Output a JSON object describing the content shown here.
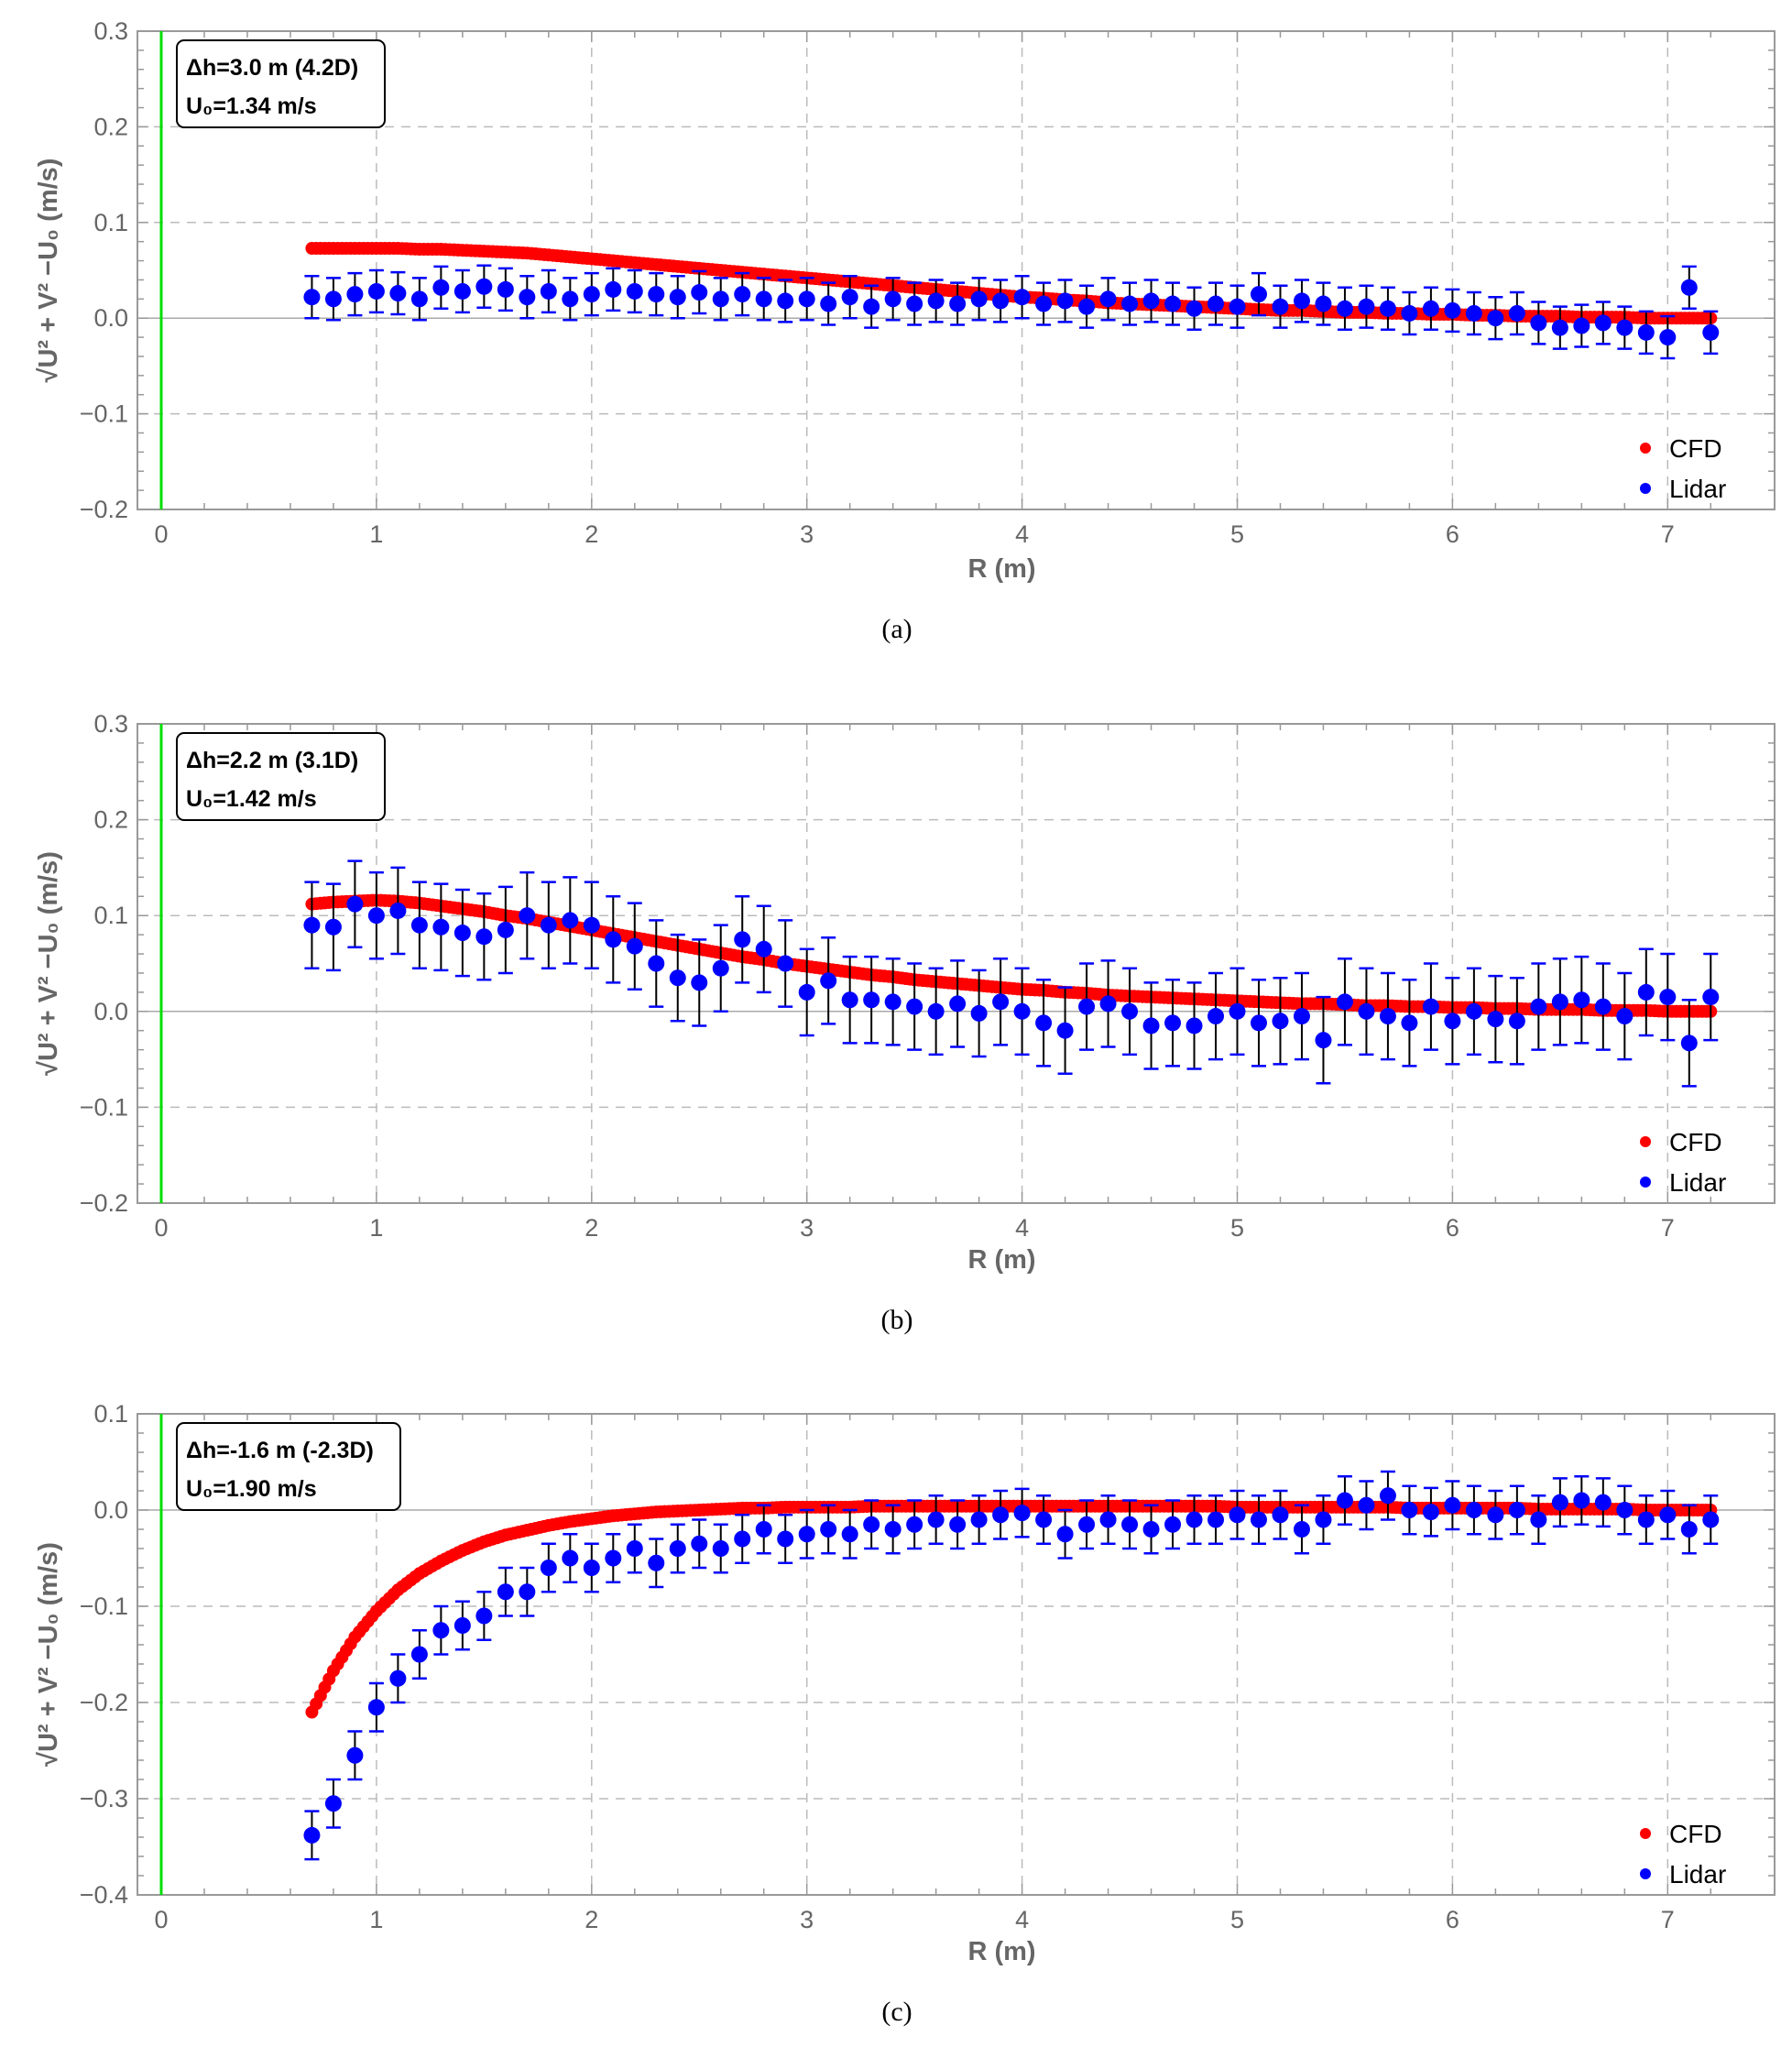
{
  "colors": {
    "cfd": "#ff0000",
    "lidar": "#0000ff",
    "errorbar": "#000000",
    "errorcap": "#0000ff",
    "reference_line": "#00dd00",
    "grid": "#bbbbbb"
  },
  "chart_data": [
    {
      "type": "scatter",
      "caption": "(a)",
      "annotation": [
        "Δh=3.0 m (4.2D)",
        "U₀=1.34 m/s"
      ],
      "xlabel": "R (m)",
      "ylabel": "√U² + V² −U₀ (m/s)",
      "xlim": [
        -0.15,
        7.5
      ],
      "ylim": [
        -0.2,
        0.3
      ],
      "xticks": [
        0,
        1,
        2,
        3,
        4,
        5,
        6,
        7
      ],
      "xtick_labels": [
        "0",
        "1",
        "2",
        "3",
        "4",
        "5",
        "6",
        "7"
      ],
      "yticks": [
        -0.2,
        -0.1,
        0,
        0.1,
        0.2,
        0.3
      ],
      "ytick_labels": [
        "−0.2",
        "−0.1",
        "0.0",
        "0.1",
        "0.2",
        "0.3"
      ],
      "grid": true,
      "legend_position": "bottom-right",
      "reference_line_x": 0,
      "x": [
        0.7,
        0.8,
        0.9,
        1.0,
        1.1,
        1.2,
        1.3,
        1.4,
        1.5,
        1.6,
        1.7,
        1.8,
        1.9,
        2.0,
        2.1,
        2.2,
        2.3,
        2.4,
        2.5,
        2.6,
        2.7,
        2.8,
        2.9,
        3.0,
        3.1,
        3.2,
        3.3,
        3.4,
        3.5,
        3.6,
        3.7,
        3.8,
        3.9,
        4.0,
        4.1,
        4.2,
        4.3,
        4.4,
        4.5,
        4.6,
        4.7,
        4.8,
        4.9,
        5.0,
        5.1,
        5.2,
        5.3,
        5.4,
        5.5,
        5.6,
        5.7,
        5.8,
        5.9,
        6.0,
        6.1,
        6.2,
        6.3,
        6.4,
        6.5,
        6.6,
        6.7,
        6.8,
        6.9,
        7.0,
        7.1,
        7.2
      ],
      "series": [
        {
          "name": "CFD",
          "values": [
            0.073,
            0.073,
            0.073,
            0.073,
            0.073,
            0.072,
            0.072,
            0.071,
            0.07,
            0.069,
            0.068,
            0.066,
            0.064,
            0.062,
            0.06,
            0.058,
            0.056,
            0.054,
            0.052,
            0.05,
            0.048,
            0.046,
            0.044,
            0.042,
            0.04,
            0.038,
            0.036,
            0.034,
            0.032,
            0.03,
            0.028,
            0.026,
            0.024,
            0.022,
            0.021,
            0.019,
            0.018,
            0.016,
            0.015,
            0.014,
            0.013,
            0.012,
            0.011,
            0.01,
            0.009,
            0.008,
            0.008,
            0.007,
            0.006,
            0.006,
            0.005,
            0.005,
            0.004,
            0.004,
            0.003,
            0.003,
            0.002,
            0.002,
            0.002,
            0.001,
            0.001,
            0.001,
            0.0,
            0.0,
            0.0,
            0.0
          ]
        },
        {
          "name": "Lidar",
          "error": 0.022,
          "values": [
            0.022,
            0.02,
            0.025,
            0.028,
            0.026,
            0.02,
            0.032,
            0.028,
            0.033,
            0.03,
            0.022,
            0.028,
            0.02,
            0.025,
            0.03,
            0.028,
            0.025,
            0.022,
            0.027,
            0.02,
            0.025,
            0.02,
            0.018,
            0.02,
            0.015,
            0.022,
            0.012,
            0.02,
            0.015,
            0.018,
            0.015,
            0.02,
            0.018,
            0.022,
            0.015,
            0.018,
            0.012,
            0.02,
            0.015,
            0.018,
            0.015,
            0.01,
            0.015,
            0.012,
            0.025,
            0.012,
            0.018,
            0.015,
            0.01,
            0.012,
            0.01,
            0.005,
            0.01,
            0.008,
            0.005,
            0.0,
            0.005,
            -0.005,
            -0.01,
            -0.008,
            -0.005,
            -0.01,
            -0.015,
            -0.02,
            0.032,
            -0.015
          ]
        }
      ]
    },
    {
      "type": "scatter",
      "caption": "(b)",
      "annotation": [
        "Δh=2.2 m (3.1D)",
        "U₀=1.42 m/s"
      ],
      "xlabel": "R (m)",
      "ylabel": "√U² + V² −U₀ (m/s)",
      "xlim": [
        -0.15,
        7.5
      ],
      "ylim": [
        -0.2,
        0.3
      ],
      "xticks": [
        0,
        1,
        2,
        3,
        4,
        5,
        6,
        7
      ],
      "xtick_labels": [
        "0",
        "1",
        "2",
        "3",
        "4",
        "5",
        "6",
        "7"
      ],
      "yticks": [
        -0.2,
        -0.1,
        0,
        0.1,
        0.2,
        0.3
      ],
      "ytick_labels": [
        "−0.2",
        "−0.1",
        "0.0",
        "0.1",
        "0.2",
        "0.3"
      ],
      "grid": true,
      "legend_position": "bottom-right",
      "reference_line_x": 0,
      "x": [
        0.7,
        0.8,
        0.9,
        1.0,
        1.1,
        1.2,
        1.3,
        1.4,
        1.5,
        1.6,
        1.7,
        1.8,
        1.9,
        2.0,
        2.1,
        2.2,
        2.3,
        2.4,
        2.5,
        2.6,
        2.7,
        2.8,
        2.9,
        3.0,
        3.1,
        3.2,
        3.3,
        3.4,
        3.5,
        3.6,
        3.7,
        3.8,
        3.9,
        4.0,
        4.1,
        4.2,
        4.3,
        4.4,
        4.5,
        4.6,
        4.7,
        4.8,
        4.9,
        5.0,
        5.1,
        5.2,
        5.3,
        5.4,
        5.5,
        5.6,
        5.7,
        5.8,
        5.9,
        6.0,
        6.1,
        6.2,
        6.3,
        6.4,
        6.5,
        6.6,
        6.7,
        6.8,
        6.9,
        7.0,
        7.1,
        7.2
      ],
      "series": [
        {
          "name": "CFD",
          "values": [
            0.112,
            0.114,
            0.115,
            0.116,
            0.115,
            0.113,
            0.11,
            0.107,
            0.104,
            0.1,
            0.097,
            0.093,
            0.089,
            0.085,
            0.081,
            0.077,
            0.073,
            0.069,
            0.065,
            0.061,
            0.057,
            0.054,
            0.05,
            0.047,
            0.044,
            0.041,
            0.038,
            0.036,
            0.033,
            0.031,
            0.029,
            0.027,
            0.025,
            0.023,
            0.022,
            0.02,
            0.019,
            0.017,
            0.016,
            0.015,
            0.014,
            0.013,
            0.012,
            0.011,
            0.01,
            0.009,
            0.008,
            0.008,
            0.007,
            0.006,
            0.006,
            0.005,
            0.005,
            0.004,
            0.004,
            0.003,
            0.003,
            0.002,
            0.002,
            0.002,
            0.001,
            0.001,
            0.001,
            0.0,
            0.0,
            0.0
          ]
        },
        {
          "name": "Lidar",
          "error": 0.045,
          "values": [
            0.09,
            0.088,
            0.112,
            0.1,
            0.105,
            0.09,
            0.088,
            0.082,
            0.078,
            0.085,
            0.1,
            0.09,
            0.095,
            0.09,
            0.075,
            0.068,
            0.05,
            0.035,
            0.03,
            0.045,
            0.075,
            0.065,
            0.05,
            0.02,
            0.032,
            0.012,
            0.012,
            0.01,
            0.005,
            0.0,
            0.008,
            -0.002,
            0.01,
            0.0,
            -0.012,
            -0.02,
            0.005,
            0.008,
            0.0,
            -0.015,
            -0.012,
            -0.015,
            -0.005,
            0.0,
            -0.012,
            -0.01,
            -0.005,
            -0.03,
            0.01,
            0.0,
            -0.005,
            -0.012,
            0.005,
            -0.01,
            0.0,
            -0.008,
            -0.01,
            0.005,
            0.01,
            0.012,
            0.005,
            -0.005,
            0.02,
            0.015,
            -0.033,
            0.015
          ]
        }
      ]
    },
    {
      "type": "scatter",
      "caption": "(c)",
      "annotation": [
        "Δh=-1.6 m (-2.3D)",
        "U₀=1.90 m/s"
      ],
      "xlabel": "R (m)",
      "ylabel": "√U² + V² −U₀ (m/s)",
      "xlim": [
        -0.15,
        7.5
      ],
      "ylim": [
        -0.4,
        0.1
      ],
      "xticks": [
        0,
        1,
        2,
        3,
        4,
        5,
        6,
        7
      ],
      "xtick_labels": [
        "0",
        "1",
        "2",
        "3",
        "4",
        "5",
        "6",
        "7"
      ],
      "yticks": [
        -0.4,
        -0.3,
        -0.2,
        -0.1,
        0,
        0.1
      ],
      "ytick_labels": [
        "−0.4",
        "−0.3",
        "−0.2",
        "−0.1",
        "0.0",
        "0.1"
      ],
      "grid": true,
      "legend_position": "bottom-right",
      "reference_line_x": 0,
      "x": [
        0.7,
        0.8,
        0.9,
        1.0,
        1.1,
        1.2,
        1.3,
        1.4,
        1.5,
        1.6,
        1.7,
        1.8,
        1.9,
        2.0,
        2.1,
        2.2,
        2.3,
        2.4,
        2.5,
        2.6,
        2.7,
        2.8,
        2.9,
        3.0,
        3.1,
        3.2,
        3.3,
        3.4,
        3.5,
        3.6,
        3.7,
        3.8,
        3.9,
        4.0,
        4.1,
        4.2,
        4.3,
        4.4,
        4.5,
        4.6,
        4.7,
        4.8,
        4.9,
        5.0,
        5.1,
        5.2,
        5.3,
        5.4,
        5.5,
        5.6,
        5.7,
        5.8,
        5.9,
        6.0,
        6.1,
        6.2,
        6.3,
        6.4,
        6.5,
        6.6,
        6.7,
        6.8,
        6.9,
        7.0,
        7.1,
        7.2
      ],
      "series": [
        {
          "name": "CFD",
          "values": [
            -0.21,
            -0.167,
            -0.132,
            -0.105,
            -0.083,
            -0.066,
            -0.053,
            -0.042,
            -0.033,
            -0.026,
            -0.021,
            -0.016,
            -0.012,
            -0.009,
            -0.006,
            -0.004,
            -0.002,
            -0.001,
            0.0,
            0.001,
            0.002,
            0.002,
            0.003,
            0.003,
            0.003,
            0.003,
            0.004,
            0.004,
            0.004,
            0.004,
            0.004,
            0.004,
            0.004,
            0.004,
            0.004,
            0.004,
            0.004,
            0.004,
            0.004,
            0.004,
            0.004,
            0.004,
            0.004,
            0.003,
            0.003,
            0.003,
            0.003,
            0.003,
            0.003,
            0.003,
            0.003,
            0.002,
            0.002,
            0.002,
            0.002,
            0.002,
            0.002,
            0.001,
            0.001,
            0.001,
            0.001,
            0.001,
            0.0,
            0.0,
            0.0,
            0.0
          ]
        },
        {
          "name": "Lidar",
          "error": 0.025,
          "values": [
            -0.338,
            -0.305,
            -0.255,
            -0.205,
            -0.175,
            -0.15,
            -0.125,
            -0.12,
            -0.11,
            -0.085,
            -0.085,
            -0.06,
            -0.05,
            -0.06,
            -0.05,
            -0.04,
            -0.055,
            -0.04,
            -0.035,
            -0.04,
            -0.03,
            -0.02,
            -0.03,
            -0.025,
            -0.02,
            -0.025,
            -0.015,
            -0.02,
            -0.015,
            -0.01,
            -0.015,
            -0.01,
            -0.005,
            -0.003,
            -0.01,
            -0.025,
            -0.015,
            -0.01,
            -0.015,
            -0.02,
            -0.015,
            -0.01,
            -0.01,
            -0.005,
            -0.01,
            -0.005,
            -0.02,
            -0.01,
            0.01,
            0.005,
            0.015,
            0.0,
            -0.002,
            0.005,
            0.0,
            -0.005,
            0.0,
            -0.01,
            0.008,
            0.01,
            0.008,
            0.0,
            -0.01,
            -0.005,
            -0.02,
            -0.01
          ]
        }
      ]
    }
  ]
}
